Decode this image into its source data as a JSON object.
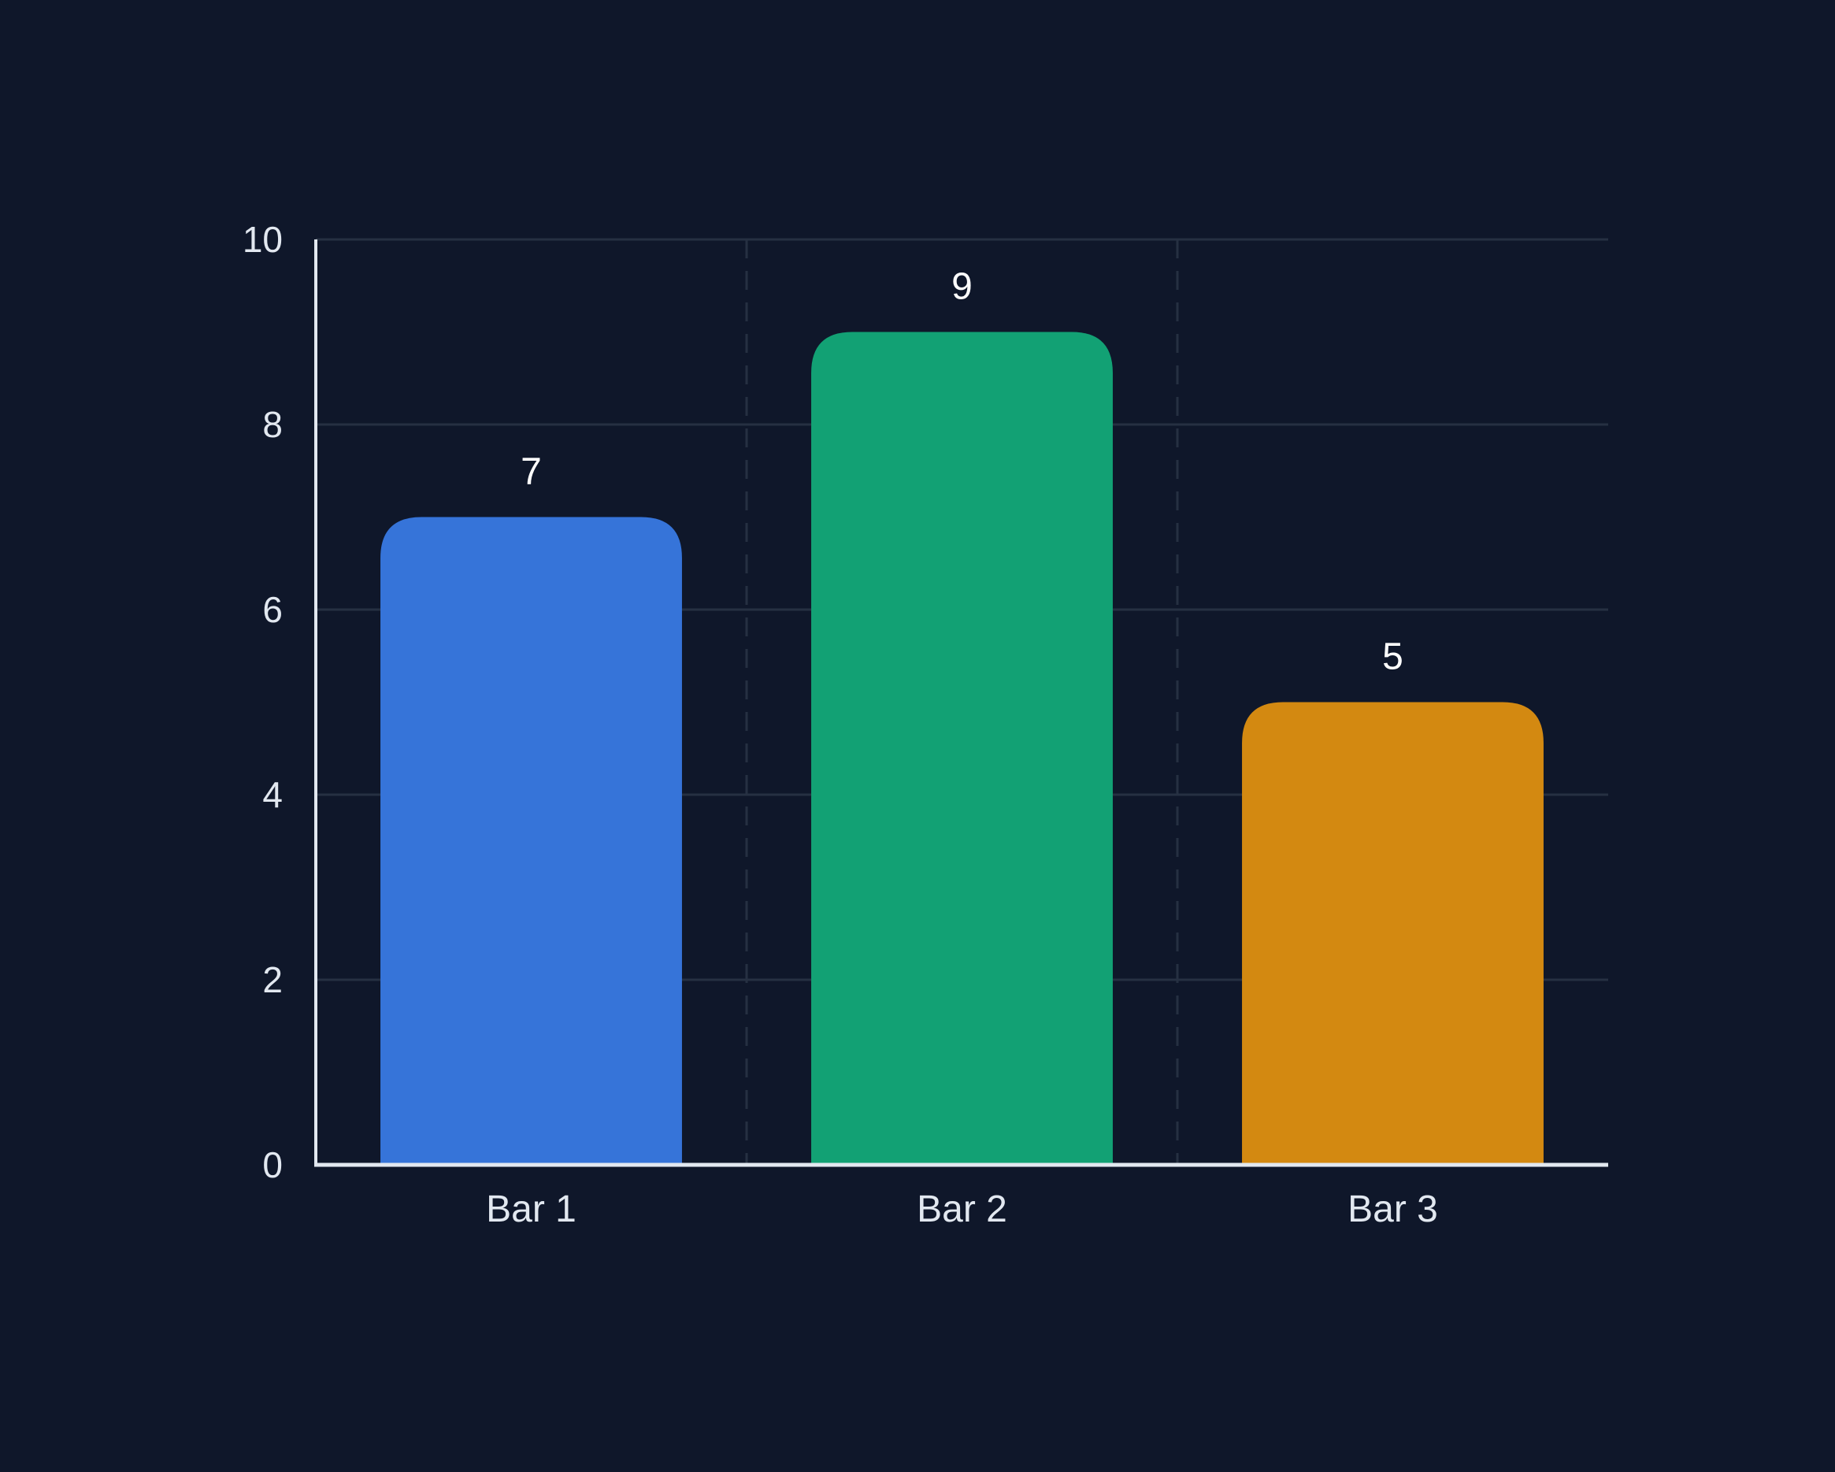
{
  "chart_data": {
    "type": "bar",
    "title": "",
    "xlabel": "",
    "ylabel": "",
    "categories": [
      "Bar 1",
      "Bar 2",
      "Bar 3"
    ],
    "values": [
      7,
      9,
      5
    ],
    "value_labels": [
      "7",
      "9",
      "5"
    ],
    "ylim": [
      0,
      10
    ],
    "yticks": [
      0,
      2,
      4,
      6,
      8,
      10
    ],
    "ytick_labels": [
      "0",
      "2",
      "4",
      "6",
      "8",
      "10"
    ],
    "grid": true,
    "legend": "none",
    "colors": [
      "#3674d9",
      "#12a174",
      "#d38911"
    ],
    "background": "#0f172a",
    "gridline_color": "#263042",
    "axis_color": "#e2e8f0",
    "label_color": "#e2e8f0"
  }
}
